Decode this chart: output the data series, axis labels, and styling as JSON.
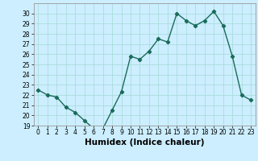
{
  "x": [
    0,
    1,
    2,
    3,
    4,
    5,
    6,
    7,
    8,
    9,
    10,
    11,
    12,
    13,
    14,
    15,
    16,
    17,
    18,
    19,
    20,
    21,
    22,
    23
  ],
  "y": [
    22.5,
    22.0,
    21.8,
    20.8,
    20.3,
    19.5,
    18.7,
    18.7,
    20.5,
    22.3,
    25.8,
    25.5,
    26.3,
    27.5,
    27.2,
    30.0,
    29.3,
    28.8,
    29.3,
    30.2,
    28.8,
    25.8,
    22.0,
    21.5
  ],
  "line_color": "#1a6b5a",
  "marker": "D",
  "marker_size": 2.2,
  "linewidth": 1.0,
  "bg_color": "#cceeff",
  "grid_color": "#aadddd",
  "xlabel": "Humidex (Indice chaleur)",
  "xlim": [
    -0.5,
    23.5
  ],
  "ylim": [
    19,
    31
  ],
  "yticks": [
    19,
    20,
    21,
    22,
    23,
    24,
    25,
    26,
    27,
    28,
    29,
    30
  ],
  "xticks": [
    0,
    1,
    2,
    3,
    4,
    5,
    6,
    7,
    8,
    9,
    10,
    11,
    12,
    13,
    14,
    15,
    16,
    17,
    18,
    19,
    20,
    21,
    22,
    23
  ],
  "tick_fontsize": 5.5,
  "xlabel_fontsize": 7.5
}
